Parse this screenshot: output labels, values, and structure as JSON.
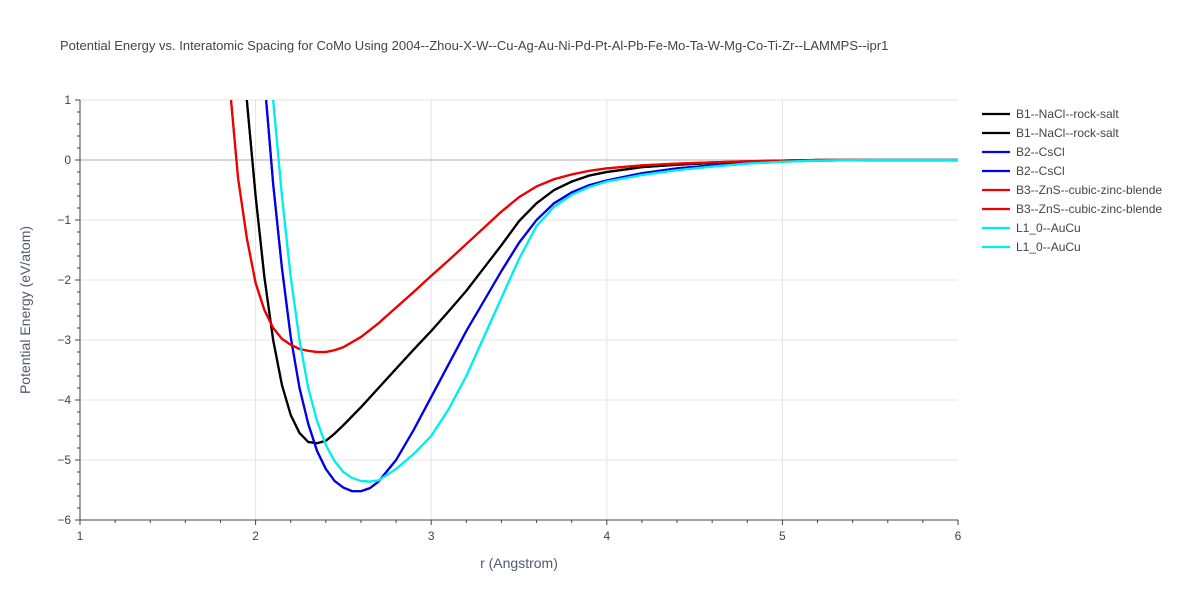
{
  "chart_data": {
    "type": "line",
    "title": "Potential Energy vs. Interatomic Spacing for CoMo Using 2004--Zhou-X-W--Cu-Ag-Au-Ni-Pd-Pt-Al-Pb-Fe-Mo-Ta-W-Mg-Co-Ti-Zr--LAMMPS--ipr1",
    "xlabel": "r (Angstrom)",
    "ylabel": "Potential Energy (eV/atom)",
    "xlim": [
      1,
      6
    ],
    "ylim": [
      -6,
      1
    ],
    "x_ticks": [
      1,
      2,
      3,
      4,
      5,
      6
    ],
    "x_tick_labels": [
      "1",
      "2",
      "3",
      "4",
      "5",
      "6"
    ],
    "y_ticks": [
      1,
      0,
      -1,
      -2,
      -3,
      -4,
      -5,
      -6
    ],
    "y_tick_labels": [
      "1",
      "0",
      "−1",
      "−2",
      "−3",
      "−4",
      "−5",
      "−6"
    ],
    "grid": true,
    "legend_position": "right",
    "series": [
      {
        "name": "B1--NaCl--rock-salt",
        "color": "#000000",
        "x": [
          1.95,
          2.0,
          2.05,
          2.1,
          2.15,
          2.2,
          2.25,
          2.3,
          2.35,
          2.4,
          2.45,
          2.5,
          2.6,
          2.7,
          2.8,
          2.9,
          3.0,
          3.1,
          3.2,
          3.3,
          3.4,
          3.5,
          3.6,
          3.7,
          3.8,
          3.9,
          4.0,
          4.2,
          4.4,
          4.6,
          4.8,
          5.0,
          5.2,
          5.5,
          6.0
        ],
        "y": [
          1.0,
          -0.6,
          -1.95,
          -3.0,
          -3.75,
          -4.25,
          -4.55,
          -4.7,
          -4.72,
          -4.68,
          -4.56,
          -4.42,
          -4.12,
          -3.8,
          -3.48,
          -3.16,
          -2.85,
          -2.52,
          -2.18,
          -1.8,
          -1.42,
          -1.02,
          -0.72,
          -0.5,
          -0.36,
          -0.26,
          -0.2,
          -0.12,
          -0.08,
          -0.05,
          -0.03,
          -0.01,
          0.0,
          0.0,
          0.0
        ]
      },
      {
        "name": "B1--NaCl--rock-salt",
        "color": "#000000",
        "x": [
          1.95,
          2.0,
          2.05,
          2.1,
          2.15,
          2.2,
          2.25,
          2.3,
          2.35,
          2.4,
          2.45,
          2.5,
          2.6,
          2.7,
          2.8,
          2.9,
          3.0,
          3.1,
          3.2,
          3.3,
          3.4,
          3.5,
          3.6,
          3.7,
          3.8,
          3.9,
          4.0,
          4.2,
          4.4,
          4.6,
          4.8,
          5.0,
          5.2,
          5.5,
          6.0
        ],
        "y": [
          1.0,
          -0.6,
          -1.95,
          -3.0,
          -3.75,
          -4.25,
          -4.55,
          -4.7,
          -4.72,
          -4.68,
          -4.56,
          -4.42,
          -4.12,
          -3.8,
          -3.48,
          -3.16,
          -2.85,
          -2.52,
          -2.18,
          -1.8,
          -1.42,
          -1.02,
          -0.72,
          -0.5,
          -0.36,
          -0.26,
          -0.2,
          -0.12,
          -0.08,
          -0.05,
          -0.03,
          -0.01,
          0.0,
          0.0,
          0.0
        ]
      },
      {
        "name": "B2--CsCl",
        "color": "#0000ee",
        "x": [
          2.06,
          2.1,
          2.15,
          2.2,
          2.25,
          2.3,
          2.35,
          2.4,
          2.45,
          2.5,
          2.55,
          2.6,
          2.65,
          2.7,
          2.8,
          2.9,
          3.0,
          3.1,
          3.2,
          3.3,
          3.4,
          3.5,
          3.6,
          3.7,
          3.8,
          3.9,
          4.0,
          4.2,
          4.4,
          4.6,
          4.8,
          5.0,
          5.2,
          5.5,
          6.0
        ],
        "y": [
          1.0,
          -0.4,
          -1.8,
          -2.95,
          -3.8,
          -4.4,
          -4.85,
          -5.15,
          -5.35,
          -5.46,
          -5.52,
          -5.52,
          -5.47,
          -5.36,
          -5.0,
          -4.5,
          -3.95,
          -3.4,
          -2.85,
          -2.35,
          -1.85,
          -1.38,
          -1.0,
          -0.72,
          -0.54,
          -0.42,
          -0.34,
          -0.22,
          -0.14,
          -0.09,
          -0.05,
          -0.02,
          -0.01,
          0.0,
          0.0
        ]
      },
      {
        "name": "B2--CsCl",
        "color": "#0000ee",
        "x": [
          2.06,
          2.1,
          2.15,
          2.2,
          2.25,
          2.3,
          2.35,
          2.4,
          2.45,
          2.5,
          2.55,
          2.6,
          2.65,
          2.7,
          2.8,
          2.9,
          3.0,
          3.1,
          3.2,
          3.3,
          3.4,
          3.5,
          3.6,
          3.7,
          3.8,
          3.9,
          4.0,
          4.2,
          4.4,
          4.6,
          4.8,
          5.0,
          5.2,
          5.5,
          6.0
        ],
        "y": [
          1.0,
          -0.4,
          -1.8,
          -2.95,
          -3.8,
          -4.4,
          -4.85,
          -5.15,
          -5.35,
          -5.46,
          -5.52,
          -5.52,
          -5.47,
          -5.36,
          -5.0,
          -4.5,
          -3.95,
          -3.4,
          -2.85,
          -2.35,
          -1.85,
          -1.38,
          -1.0,
          -0.72,
          -0.54,
          -0.42,
          -0.34,
          -0.22,
          -0.14,
          -0.09,
          -0.05,
          -0.02,
          -0.01,
          0.0,
          0.0
        ]
      },
      {
        "name": "B3--ZnS--cubic-zinc-blende",
        "color": "#ee0000",
        "x": [
          1.86,
          1.9,
          1.95,
          2.0,
          2.05,
          2.1,
          2.15,
          2.2,
          2.25,
          2.3,
          2.35,
          2.4,
          2.45,
          2.5,
          2.6,
          2.7,
          2.8,
          2.9,
          3.0,
          3.1,
          3.2,
          3.3,
          3.4,
          3.5,
          3.6,
          3.7,
          3.8,
          3.9,
          4.0,
          4.2,
          4.4,
          4.6,
          4.8,
          5.0,
          5.2,
          5.5,
          6.0
        ],
        "y": [
          1.0,
          -0.3,
          -1.3,
          -2.05,
          -2.5,
          -2.8,
          -2.98,
          -3.08,
          -3.15,
          -3.18,
          -3.2,
          -3.2,
          -3.17,
          -3.12,
          -2.95,
          -2.72,
          -2.46,
          -2.2,
          -1.93,
          -1.67,
          -1.4,
          -1.13,
          -0.86,
          -0.62,
          -0.44,
          -0.32,
          -0.24,
          -0.18,
          -0.14,
          -0.09,
          -0.06,
          -0.04,
          -0.02,
          -0.01,
          0.0,
          0.0,
          0.0
        ]
      },
      {
        "name": "B3--ZnS--cubic-zinc-blende",
        "color": "#ee0000",
        "x": [
          1.86,
          1.9,
          1.95,
          2.0,
          2.05,
          2.1,
          2.15,
          2.2,
          2.25,
          2.3,
          2.35,
          2.4,
          2.45,
          2.5,
          2.6,
          2.7,
          2.8,
          2.9,
          3.0,
          3.1,
          3.2,
          3.3,
          3.4,
          3.5,
          3.6,
          3.7,
          3.8,
          3.9,
          4.0,
          4.2,
          4.4,
          4.6,
          4.8,
          5.0,
          5.2,
          5.5,
          6.0
        ],
        "y": [
          1.0,
          -0.3,
          -1.3,
          -2.05,
          -2.5,
          -2.8,
          -2.98,
          -3.08,
          -3.15,
          -3.18,
          -3.2,
          -3.2,
          -3.17,
          -3.12,
          -2.95,
          -2.72,
          -2.46,
          -2.2,
          -1.93,
          -1.67,
          -1.4,
          -1.13,
          -0.86,
          -0.62,
          -0.44,
          -0.32,
          -0.24,
          -0.18,
          -0.14,
          -0.09,
          -0.06,
          -0.04,
          -0.02,
          -0.01,
          0.0,
          0.0,
          0.0
        ]
      },
      {
        "name": "L1_0--AuCu",
        "color": "#00eeee",
        "x": [
          2.1,
          2.15,
          2.2,
          2.25,
          2.3,
          2.35,
          2.4,
          2.45,
          2.5,
          2.55,
          2.6,
          2.65,
          2.7,
          2.8,
          2.9,
          3.0,
          3.1,
          3.2,
          3.3,
          3.4,
          3.5,
          3.6,
          3.7,
          3.8,
          3.9,
          4.0,
          4.2,
          4.4,
          4.6,
          4.8,
          5.0,
          5.2,
          5.5,
          6.0
        ],
        "y": [
          1.0,
          -0.6,
          -1.95,
          -3.0,
          -3.8,
          -4.35,
          -4.75,
          -5.02,
          -5.2,
          -5.3,
          -5.35,
          -5.36,
          -5.34,
          -5.15,
          -4.9,
          -4.6,
          -4.15,
          -3.6,
          -2.95,
          -2.3,
          -1.65,
          -1.1,
          -0.78,
          -0.58,
          -0.45,
          -0.36,
          -0.25,
          -0.17,
          -0.11,
          -0.06,
          -0.03,
          -0.01,
          0.0,
          0.0
        ]
      },
      {
        "name": "L1_0--AuCu",
        "color": "#00eeee",
        "x": [
          2.1,
          2.15,
          2.2,
          2.25,
          2.3,
          2.35,
          2.4,
          2.45,
          2.5,
          2.55,
          2.6,
          2.65,
          2.7,
          2.8,
          2.9,
          3.0,
          3.1,
          3.2,
          3.3,
          3.4,
          3.5,
          3.6,
          3.7,
          3.8,
          3.9,
          4.0,
          4.2,
          4.4,
          4.6,
          4.8,
          5.0,
          5.2,
          5.5,
          6.0
        ],
        "y": [
          1.0,
          -0.6,
          -1.95,
          -3.0,
          -3.8,
          -4.35,
          -4.75,
          -5.02,
          -5.2,
          -5.3,
          -5.35,
          -5.36,
          -5.34,
          -5.15,
          -4.9,
          -4.6,
          -4.15,
          -3.6,
          -2.95,
          -2.3,
          -1.65,
          -1.1,
          -0.78,
          -0.58,
          -0.45,
          -0.36,
          -0.25,
          -0.17,
          -0.11,
          -0.06,
          -0.03,
          -0.01,
          0.0,
          0.0
        ]
      }
    ]
  }
}
